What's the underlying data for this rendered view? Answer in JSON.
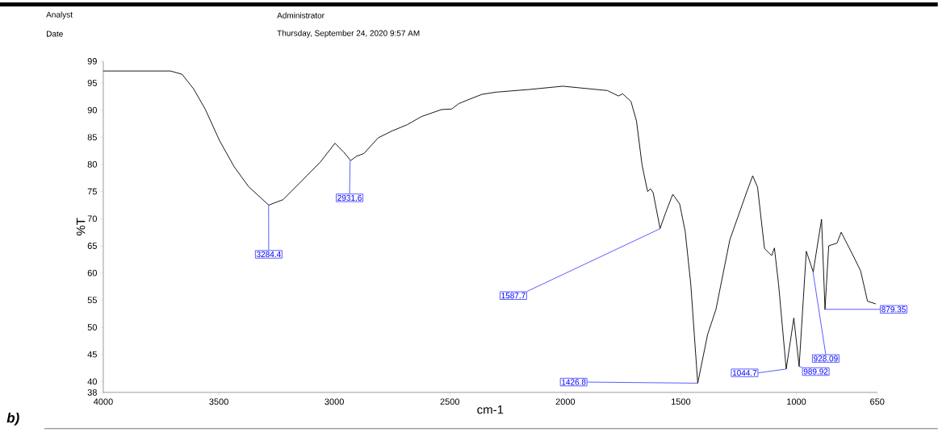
{
  "chart_data": {
    "type": "line",
    "xlabel": "cm-1",
    "ylabel": "%T",
    "color": "#000000",
    "grid": false,
    "marker": "none",
    "line_style": "solid",
    "xlim": [
      4000,
      650
    ],
    "ylim": [
      38,
      99
    ],
    "xticks": [
      4000,
      3500,
      3000,
      2500,
      2000,
      1500,
      1000,
      650
    ],
    "yticks": [
      38,
      40,
      45,
      50,
      55,
      60,
      65,
      70,
      75,
      80,
      85,
      90,
      95,
      99
    ],
    "x": [
      4000,
      3709,
      3659,
      3609,
      3559,
      3497,
      3434,
      3371,
      3284,
      3222,
      3147,
      3061,
      2997,
      2960,
      2929,
      2904,
      2872,
      2810,
      2748,
      2685,
      2623,
      2536,
      2492,
      2461,
      2421,
      2361,
      2301,
      2156,
      2011,
      1818,
      1770,
      1752,
      1716,
      1692,
      1668,
      1644,
      1631,
      1620,
      1590,
      1565,
      1535,
      1505,
      1481,
      1457,
      1427,
      1384,
      1348,
      1288,
      1216,
      1189,
      1168,
      1138,
      1107,
      1095,
      1077,
      1044,
      1011,
      988,
      957,
      927,
      891,
      876,
      860,
      824,
      806,
      758,
      722,
      692,
      656
    ],
    "values": [
      97.2,
      97.2,
      96.6,
      93.9,
      90.2,
      84.4,
      79.6,
      75.9,
      72.5,
      73.5,
      76.7,
      80.4,
      83.9,
      82.3,
      80.7,
      81.5,
      82.0,
      84.9,
      86.2,
      87.3,
      88.8,
      90.1,
      90.2,
      91.2,
      91.9,
      92.9,
      93.3,
      93.8,
      94.4,
      93.6,
      92.6,
      93.0,
      91.6,
      88.0,
      79.9,
      75.0,
      75.5,
      74.8,
      68.2,
      71.2,
      74.5,
      72.7,
      67.6,
      57.9,
      39.7,
      48.7,
      53.3,
      66.1,
      74.8,
      77.9,
      75.8,
      64.5,
      63.2,
      64.6,
      57.9,
      42.3,
      51.7,
      42.8,
      64.0,
      60.2,
      69.9,
      53.3,
      65.0,
      65.5,
      67.5,
      63.5,
      60.4,
      54.8,
      54.3
    ],
    "annotations": [
      "Analyst",
      "Administrator",
      "Date",
      "Thursday, September 24, 2020 9:57 AM",
      "b)",
      {
        "text": "3284.4",
        "x": 3284.4,
        "y": 72.5
      },
      {
        "text": "2931.6",
        "x": 2931.6,
        "y": 80.7
      },
      {
        "text": "1587.7",
        "x": 1587.7,
        "y": 68.2
      },
      {
        "text": "1426.8",
        "x": 1426.8,
        "y": 39.7
      },
      {
        "text": "1044.7",
        "x": 1044.7,
        "y": 42.3
      },
      {
        "text": "989.92",
        "x": 989.92,
        "y": 42.8
      },
      {
        "text": "928.09",
        "x": 928.09,
        "y": 60.2
      },
      {
        "text": "879.35",
        "x": 879.35,
        "y": 53.3
      }
    ]
  }
}
